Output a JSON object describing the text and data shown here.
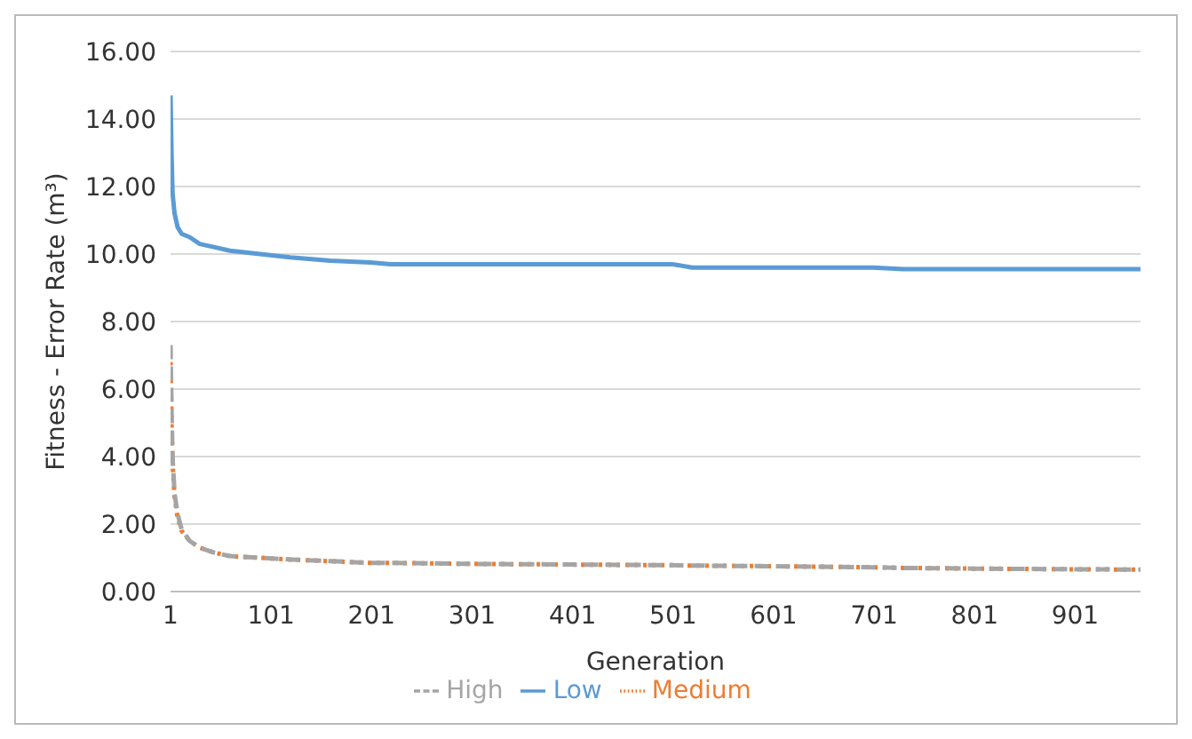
{
  "chart_data": {
    "type": "line",
    "xlabel": "Generation",
    "ylabel": "Fitness - Error Rate (m³)",
    "x": [
      1,
      2,
      3,
      5,
      8,
      12,
      20,
      30,
      45,
      60,
      90,
      120,
      160,
      200,
      220,
      300,
      400,
      500,
      520,
      600,
      700,
      730,
      800,
      900,
      966
    ],
    "series": [
      {
        "name": "Low",
        "color": "#5b9bd5",
        "line_style": "solid",
        "values": [
          14.7,
          13.0,
          11.8,
          11.2,
          10.8,
          10.6,
          10.5,
          10.3,
          10.2,
          10.1,
          10.0,
          9.9,
          9.8,
          9.75,
          9.7,
          9.7,
          9.7,
          9.7,
          9.6,
          9.6,
          9.6,
          9.55,
          9.55,
          9.55,
          9.55
        ]
      },
      {
        "name": "Medium",
        "color": "#ed7d31",
        "line_style": "dotted",
        "values": [
          6.8,
          5.0,
          3.8,
          2.8,
          2.2,
          1.8,
          1.5,
          1.3,
          1.15,
          1.05,
          1.0,
          0.95,
          0.9,
          0.85,
          0.85,
          0.82,
          0.8,
          0.78,
          0.77,
          0.75,
          0.72,
          0.7,
          0.68,
          0.66,
          0.65
        ]
      },
      {
        "name": "High",
        "color": "#a5a5a5",
        "line_style": "dashed",
        "values": [
          7.3,
          5.4,
          4.0,
          2.9,
          2.3,
          1.85,
          1.5,
          1.3,
          1.15,
          1.05,
          1.0,
          0.95,
          0.9,
          0.85,
          0.85,
          0.82,
          0.8,
          0.78,
          0.77,
          0.75,
          0.72,
          0.7,
          0.68,
          0.66,
          0.65
        ]
      }
    ],
    "xlim": [
      1,
      966
    ],
    "xticks": [
      1,
      101,
      201,
      301,
      401,
      501,
      601,
      701,
      801,
      901
    ],
    "ylim": [
      0,
      16
    ],
    "yticks": [
      {
        "value": 0,
        "label": "0.00"
      },
      {
        "value": 2,
        "label": "2.00"
      },
      {
        "value": 4,
        "label": "4.00"
      },
      {
        "value": 6,
        "label": "6.00"
      },
      {
        "value": 8,
        "label": "8.00"
      },
      {
        "value": 10,
        "label": "10.00"
      },
      {
        "value": 12,
        "label": "12.00"
      },
      {
        "value": 14,
        "label": "14.00"
      },
      {
        "value": 16,
        "label": "16.00"
      }
    ],
    "grid": "y",
    "legend": "bottom",
    "marker": "none"
  }
}
